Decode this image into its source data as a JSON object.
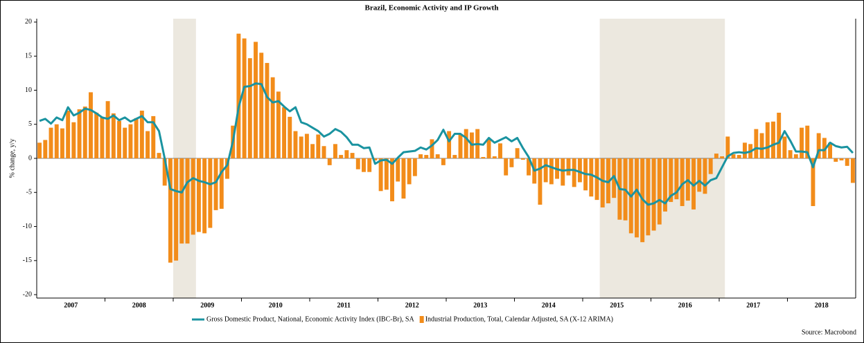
{
  "chart_data": {
    "type": "bar-line",
    "title": "Brazil, Economic Activity and IP Growth",
    "y_label": "% change, y/y",
    "source": "Source: Macrobond",
    "categories": [
      null,
      null,
      null,
      null,
      null,
      null,
      "2007",
      null,
      null,
      null,
      null,
      null,
      null,
      null,
      null,
      null,
      null,
      null,
      "2008",
      null,
      null,
      null,
      null,
      null,
      null,
      null,
      null,
      null,
      null,
      null,
      "2009",
      null,
      null,
      null,
      null,
      null,
      null,
      null,
      null,
      null,
      null,
      null,
      "2010",
      null,
      null,
      null,
      null,
      null,
      null,
      null,
      null,
      null,
      null,
      null,
      "2011",
      null,
      null,
      null,
      null,
      null,
      null,
      null,
      null,
      null,
      null,
      null,
      "2012",
      null,
      null,
      null,
      null,
      null,
      null,
      null,
      null,
      null,
      null,
      null,
      "2013",
      null,
      null,
      null,
      null,
      null,
      null,
      null,
      null,
      null,
      null,
      null,
      "2014",
      null,
      null,
      null,
      null,
      null,
      null,
      null,
      null,
      null,
      null,
      null,
      "2015",
      null,
      null,
      null,
      null,
      null,
      null,
      null,
      null,
      null,
      null,
      null,
      "2016",
      null,
      null,
      null,
      null,
      null,
      null,
      null,
      null,
      null,
      null,
      null,
      "2017",
      null,
      null,
      null,
      null,
      null,
      null,
      null,
      null,
      null,
      null,
      null,
      "2018",
      null,
      null,
      null,
      null,
      null
    ],
    "series": [
      {
        "name": "Gross Domestic Product, National, Economic Activity Index (IBC-Br), SA",
        "type": "line",
        "color": "#1a93a0",
        "values": [
          5.5,
          5.8,
          5.1,
          6.0,
          5.6,
          7.5,
          6.3,
          6.7,
          7.3,
          7.1,
          6.6,
          6.0,
          5.8,
          6.3,
          5.6,
          6.0,
          5.4,
          5.8,
          6.2,
          5.3,
          5.3,
          4.0,
          0.0,
          -4.5,
          -4.8,
          -5.0,
          -3.5,
          -2.9,
          -3.3,
          -3.5,
          -3.8,
          -3.5,
          -2.0,
          -1.0,
          2.5,
          7.5,
          10.5,
          10.6,
          11.0,
          10.9,
          9.0,
          8.2,
          8.4,
          7.6,
          6.9,
          7.5,
          5.3,
          5.0,
          4.5,
          4.0,
          3.2,
          3.6,
          4.3,
          3.9,
          3.1,
          2.0,
          2.0,
          1.5,
          1.6,
          -0.8,
          -0.3,
          -0.2,
          -0.8,
          0.1,
          0.9,
          1.0,
          1.1,
          1.6,
          1.3,
          1.9,
          2.7,
          4.2,
          2.5,
          3.6,
          3.6,
          3.0,
          2.0,
          2.1,
          2.0,
          3.0,
          2.3,
          2.7,
          3.1,
          2.5,
          3.0,
          1.5,
          0.2,
          -1.8,
          -1.5,
          -1.0,
          -1.3,
          -1.6,
          -1.8,
          -1.7,
          -1.7,
          -2.0,
          -2.3,
          -2.4,
          -2.8,
          -3.3,
          -3.5,
          -2.6,
          -4.5,
          -4.6,
          -5.6,
          -4.6,
          -6.0,
          -6.8,
          -6.6,
          -6.1,
          -6.6,
          -5.5,
          -5.0,
          -3.8,
          -3.2,
          -4.0,
          -3.3,
          -4.0,
          -3.2,
          -2.9,
          -1.3,
          0.3,
          0.8,
          0.9,
          0.8,
          1.0,
          1.5,
          1.4,
          1.6,
          2.0,
          2.3,
          4.0,
          2.6,
          1.0,
          1.0,
          0.9,
          -1.3,
          1.2,
          1.2,
          2.3,
          1.8,
          1.6,
          1.7,
          0.8
        ]
      },
      {
        "name": "Industrial Production, Total, Calendar Adjusted, SA (X-12 ARIMA)",
        "type": "bar",
        "color": "#f28c1a",
        "values": [
          2.3,
          2.7,
          4.5,
          5.0,
          4.4,
          7.0,
          5.3,
          7.2,
          7.6,
          9.7,
          6.7,
          6.0,
          8.4,
          6.6,
          5.5,
          4.5,
          5.0,
          5.9,
          7.0,
          4.0,
          6.2,
          0.8,
          -4.0,
          -15.3,
          -15.0,
          -12.5,
          -12.5,
          -11.2,
          -10.8,
          -11.0,
          -10.2,
          -7.6,
          -7.4,
          -3.0,
          4.8,
          18.3,
          17.6,
          14.7,
          17.1,
          15.5,
          14.0,
          11.9,
          9.8,
          7.5,
          6.1,
          4.0,
          3.2,
          3.6,
          2.1,
          3.5,
          1.8,
          -1.0,
          2.1,
          0.5,
          1.2,
          0.8,
          -1.6,
          -2.0,
          -2.0,
          -0.3,
          -4.8,
          -4.6,
          -6.3,
          -3.4,
          -5.9,
          -3.8,
          -2.6,
          0.6,
          0.5,
          2.8,
          0.6,
          -1.0,
          4.0,
          0.5,
          3.5,
          4.3,
          3.8,
          4.3,
          0.2,
          2.8,
          0.3,
          2.2,
          -2.5,
          -1.3,
          1.5,
          -0.2,
          -2.5,
          -3.7,
          -6.8,
          -3.5,
          -3.8,
          -3.0,
          -4.0,
          -2.5,
          -4.2,
          -3.5,
          -4.7,
          -5.6,
          -6.1,
          -7.2,
          -6.6,
          -5.8,
          -9.0,
          -9.1,
          -11.0,
          -11.6,
          -12.3,
          -11.3,
          -10.6,
          -9.7,
          -7.8,
          -6.4,
          -6.0,
          -7.0,
          -6.2,
          -7.5,
          -4.9,
          -5.2,
          -2.3,
          0.7,
          0.3,
          3.2,
          0.6,
          0.5,
          2.3,
          2.1,
          4.3,
          3.7,
          5.3,
          5.4,
          6.7,
          3.2,
          1.2,
          0.6,
          4.5,
          4.8,
          -7.0,
          3.7,
          3.0,
          2.3,
          -0.5,
          -0.3,
          -1.1,
          -3.6
        ]
      }
    ],
    "shaded_ranges": [
      [
        24,
        27
      ],
      [
        99,
        120
      ]
    ],
    "shade_color": "#ece8df",
    "ylim": [
      -20.5,
      20.5
    ],
    "yticks": [
      -20,
      -15,
      -10,
      -5,
      0,
      5,
      10,
      15,
      20
    ],
    "legend": "bottom"
  }
}
